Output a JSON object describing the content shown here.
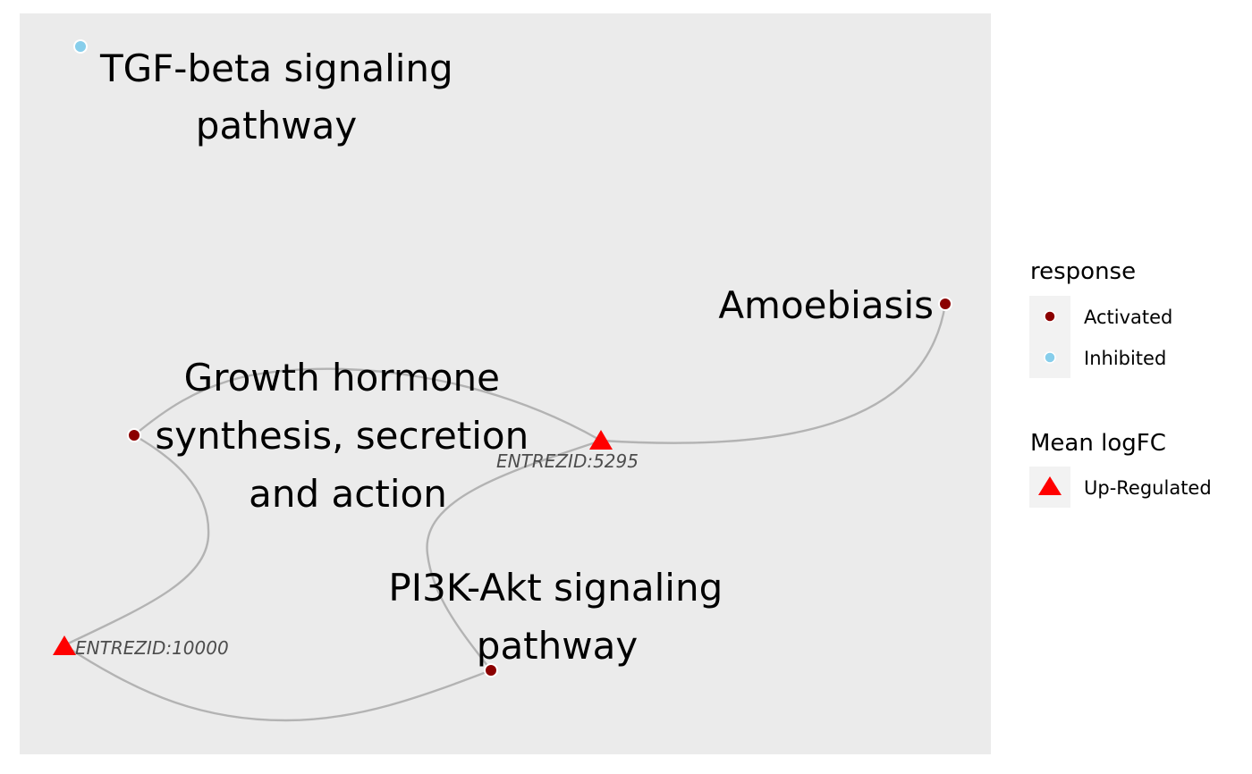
{
  "nodes": {
    "tgf_beta": {
      "lines": [
        "TGF-beta signaling",
        "pathway"
      ],
      "type": "pathway",
      "response": "Inhibited"
    },
    "amoebiasis": {
      "lines": [
        "Amoebiasis"
      ],
      "type": "pathway",
      "response": "Activated"
    },
    "growth_hormone": {
      "lines": [
        "Growth hormone",
        "synthesis, secretion",
        "and action"
      ],
      "type": "pathway",
      "response": "Activated"
    },
    "pi3k_akt": {
      "lines": [
        "PI3K-Akt signaling",
        "pathway"
      ],
      "type": "pathway",
      "response": "Activated"
    },
    "gene_5295": {
      "label": "ENTREZID:5295",
      "type": "gene",
      "logfc": "Up-Regulated"
    },
    "gene_10000": {
      "label": "ENTREZID:10000",
      "type": "gene",
      "logfc": "Up-Regulated"
    }
  },
  "edges": [
    [
      "gene_5295",
      "amoebiasis"
    ],
    [
      "gene_5295",
      "growth_hormone"
    ],
    [
      "gene_5295",
      "pi3k_akt"
    ],
    [
      "gene_10000",
      "growth_hormone"
    ],
    [
      "gene_10000",
      "pi3k_akt"
    ]
  ],
  "legend": {
    "response": {
      "title": "response",
      "items": [
        {
          "label": "Activated",
          "color": "#8b0000"
        },
        {
          "label": "Inhibited",
          "color": "#87ceeb"
        }
      ]
    },
    "logfc": {
      "title": "Mean logFC",
      "items": [
        {
          "label": "Up-Regulated",
          "color": "#ff0000",
          "shape": "triangle"
        }
      ]
    }
  },
  "colors": {
    "panel_background": "#ebebeb",
    "edge": "#b3b3b3",
    "legend_key_background": "#f2f2f2",
    "activated": "#8b0000",
    "inhibited": "#87ceeb",
    "up_regulated": "#ff0000"
  }
}
